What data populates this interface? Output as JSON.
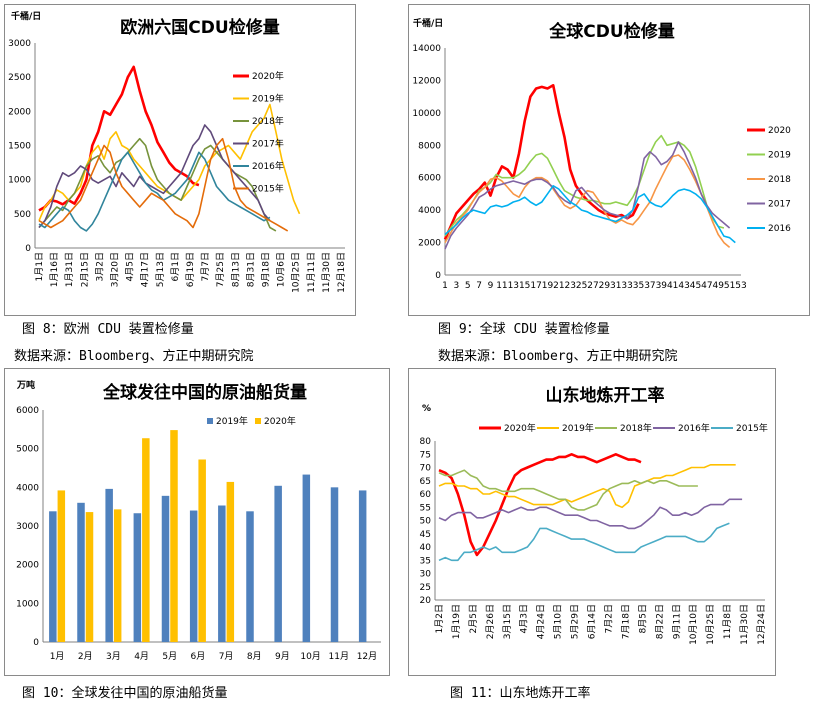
{
  "captions": {
    "fig8": "图 8：欧洲 CDU 装置检修量",
    "fig9": "图 9：全球 CDU 装置检修量",
    "source_left": "数据来源：Bloomberg、方正中期研究院",
    "source_right": "数据来源：Bloomberg、方正中期研究院",
    "fig10": "图 10：全球发往中国的原油船货量",
    "fig11": "图 11：山东地炼开工率"
  },
  "chart_data": [
    {
      "id": "europe_cdu",
      "type": "line",
      "title": "欧洲六国CDU检修量",
      "unit": "千桶/日",
      "ylim": [
        0,
        3000
      ],
      "yticks": [
        "0",
        "500",
        "1000",
        "1500",
        "2000",
        "2500",
        "3000"
      ],
      "xticks": [
        "1月1日",
        "1月16日",
        "1月31日",
        "2月15日",
        "3月2日",
        "3月20日",
        "4月5日",
        "4月17日",
        "5月13日",
        "6月1日",
        "6月19日",
        "7月7日",
        "7月25日",
        "8月13日",
        "8月31日",
        "9月18日",
        "10月6日",
        "10月25日",
        "11月11日",
        "11月30日",
        "12月18日"
      ],
      "colors": {
        "2020年": "#ff0000",
        "2019年": "#ffc000",
        "2018年": "#77933c",
        "2017年": "#604a7b",
        "2016年": "#31859c",
        "2015年": "#e46c0a"
      },
      "series": [
        {
          "name": "2020年",
          "values": [
            550,
            600,
            700,
            680,
            640,
            700,
            650,
            800,
            1000,
            1500,
            1700,
            2000,
            1950,
            2100,
            2250,
            2500,
            2650,
            2300,
            2000,
            1800,
            1550,
            1400,
            1250,
            1150,
            1100,
            1050,
            950,
            920
          ]
        },
        {
          "name": "2019年",
          "values": [
            400,
            600,
            700,
            850,
            800,
            700,
            800,
            900,
            1200,
            1400,
            1500,
            1300,
            1600,
            1700,
            1500,
            1450,
            1300,
            1200,
            1100,
            1000,
            900,
            850,
            800,
            750,
            700,
            800,
            900,
            1000,
            1200,
            1300,
            1400,
            1450,
            1500,
            1400,
            1300,
            1500,
            1700,
            1800,
            1900,
            2100,
            1700,
            1300,
            1000,
            700,
            500
          ]
        },
        {
          "name": "2018年",
          "values": [
            300,
            400,
            500,
            600,
            550,
            700,
            800,
            1000,
            1200,
            1300,
            1350,
            1200,
            1100,
            1250,
            1300,
            1400,
            1500,
            1600,
            1500,
            1200,
            1000,
            900,
            800,
            750,
            700,
            900,
            1100,
            1300,
            1450,
            1500,
            1400,
            1300,
            1200,
            1100,
            1050,
            1000,
            900,
            700,
            500,
            300,
            250
          ]
        },
        {
          "name": "2017年",
          "values": [
            300,
            400,
            600,
            900,
            1100,
            1050,
            1100,
            1200,
            1150,
            1000,
            950,
            1000,
            1050,
            900,
            1100,
            1000,
            900,
            1050,
            950,
            900,
            850,
            800,
            900,
            1000,
            1100,
            1300,
            1500,
            1600,
            1800,
            1700,
            1500,
            1300,
            1200,
            1100,
            1000,
            900,
            800,
            700,
            500,
            400
          ]
        },
        {
          "name": "2016年",
          "values": [
            350,
            300,
            400,
            500,
            600,
            550,
            400,
            300,
            250,
            350,
            500,
            700,
            900,
            1100,
            1300,
            1400,
            1250,
            1100,
            950,
            850,
            800,
            700,
            750,
            800,
            900,
            1000,
            1200,
            1400,
            1300,
            1100,
            900,
            800,
            700,
            650,
            600,
            550,
            500,
            450,
            400,
            450
          ]
        },
        {
          "name": "2015年",
          "values": [
            400,
            350,
            300,
            350,
            400,
            500,
            600,
            700,
            900,
            1100,
            1300,
            1500,
            1400,
            1100,
            900,
            800,
            700,
            600,
            700,
            800,
            750,
            700,
            600,
            500,
            450,
            400,
            300,
            500,
            900,
            1300,
            1500,
            1600,
            1300,
            900,
            700,
            600,
            550,
            500,
            450,
            400,
            350,
            300,
            250
          ]
        }
      ]
    },
    {
      "id": "global_cdu",
      "type": "line",
      "title": "全球CDU检修量",
      "unit": "千桶/日",
      "ylim": [
        0,
        14000
      ],
      "yticks": [
        "0",
        "2000",
        "4000",
        "6000",
        "8000",
        "10000",
        "12000",
        "14000"
      ],
      "xticks": [
        "1",
        "3",
        "5",
        "7",
        "9",
        "11",
        "13",
        "15",
        "17",
        "19",
        "21",
        "23",
        "25",
        "27",
        "29",
        "31",
        "33",
        "35",
        "37",
        "39",
        "41",
        "43",
        "45",
        "47",
        "49",
        "51",
        "53"
      ],
      "colors": {
        "2020": "#ff0000",
        "2019": "#92d050",
        "2018": "#f79646",
        "2017": "#8064a2",
        "2016": "#00b0f0"
      },
      "series": [
        {
          "name": "2020",
          "values": [
            2200,
            3000,
            3800,
            4200,
            4600,
            5000,
            5300,
            5700,
            4900,
            6000,
            6700,
            6500,
            6000,
            7500,
            9500,
            11000,
            11500,
            11600,
            11500,
            11700,
            10000,
            8500,
            6500,
            5500,
            5000,
            4600,
            4300,
            4000,
            3800,
            3700,
            3600,
            3700,
            3500,
            3700,
            4400
          ]
        },
        {
          "name": "2019",
          "values": [
            2400,
            2900,
            3400,
            3700,
            4100,
            4600,
            5200,
            5400,
            5700,
            6200,
            6000,
            6000,
            6000,
            6200,
            6500,
            7000,
            7400,
            7500,
            7200,
            6500,
            5800,
            5200,
            5000,
            4800,
            4700,
            4600,
            4600,
            4500,
            4400,
            4400,
            4500,
            4400,
            4300,
            4800,
            5500,
            6500,
            7500,
            8200,
            8600,
            8000,
            8100,
            8200,
            8000,
            7600,
            6700,
            5500,
            4300,
            3500,
            3000,
            2900
          ]
        },
        {
          "name": "2018",
          "values": [
            2000,
            2600,
            3200,
            3600,
            4000,
            4600,
            5100,
            5400,
            5900,
            6000,
            5800,
            5400,
            5000,
            4800,
            5400,
            5800,
            6000,
            6000,
            5800,
            5300,
            4800,
            4300,
            4100,
            4300,
            4800,
            5200,
            5100,
            4600,
            3900,
            3400,
            3200,
            3400,
            3200,
            3100,
            3500,
            4000,
            4500,
            5300,
            6000,
            6700,
            7300,
            7400,
            7100,
            6500,
            5800,
            5000,
            4200,
            3300,
            2500,
            2000,
            1700
          ]
        },
        {
          "name": "2017",
          "values": [
            1600,
            2400,
            2900,
            3300,
            3700,
            4200,
            4800,
            5000,
            5300,
            5500,
            5600,
            5700,
            5800,
            5700,
            5600,
            5800,
            5900,
            5900,
            5700,
            5400,
            4900,
            4600,
            4400,
            5200,
            5400,
            5000,
            4600,
            4300,
            4000,
            3800,
            3700,
            3600,
            3500,
            4000,
            5500,
            7200,
            7600,
            7300,
            6800,
            7000,
            7400,
            8200,
            7600,
            6800,
            6000,
            5000,
            4300,
            3800,
            3500,
            3200,
            2900
          ]
        },
        {
          "name": "2016",
          "values": [
            2500,
            2800,
            3100,
            3500,
            3800,
            4000,
            3900,
            3800,
            4200,
            4300,
            4200,
            4300,
            4500,
            4600,
            4800,
            4500,
            4300,
            4500,
            5000,
            5500,
            5300,
            4900,
            4500,
            4300,
            4000,
            3900,
            3700,
            3600,
            3500,
            3400,
            3300,
            3500,
            3700,
            4000,
            4800,
            5000,
            4500,
            4300,
            4200,
            4500,
            4900,
            5200,
            5300,
            5200,
            5000,
            4700,
            4200,
            3600,
            3000,
            2400,
            2300,
            2000
          ]
        }
      ]
    },
    {
      "id": "crude_shipments",
      "type": "bar",
      "title": "全球发往中国的原油船货量",
      "unit": "万吨",
      "ylim": [
        0,
        6000
      ],
      "yticks": [
        "0",
        "1000",
        "2000",
        "3000",
        "4000",
        "5000",
        "6000"
      ],
      "categories": [
        "1月",
        "2月",
        "3月",
        "4月",
        "5月",
        "6月",
        "7月",
        "8月",
        "9月",
        "10月",
        "11月",
        "12月"
      ],
      "colors": {
        "2019年": "#4f81bd",
        "2020年": "#ffc000"
      },
      "series": [
        {
          "name": "2019年",
          "values": [
            3380,
            3600,
            3960,
            3330,
            3780,
            3400,
            3530,
            3380,
            4040,
            4330,
            4000,
            3920
          ]
        },
        {
          "name": "2020年",
          "values": [
            3920,
            3360,
            3430,
            5270,
            5480,
            4720,
            4140,
            null,
            null,
            null,
            null,
            null
          ]
        }
      ]
    },
    {
      "id": "shandong_refinery",
      "type": "line",
      "title": "山东地炼开工率",
      "unit": "%",
      "ylim": [
        20,
        80
      ],
      "yticks": [
        "20",
        "25",
        "30",
        "35",
        "40",
        "45",
        "50",
        "55",
        "60",
        "65",
        "70",
        "75",
        "80"
      ],
      "xticks": [
        "1月2日",
        "1月19日",
        "2月5日",
        "2月26日",
        "3月15日",
        "4月3日",
        "4月24日",
        "5月10日",
        "5月29日",
        "6月14日",
        "7月2日",
        "7月18日",
        "8月5日",
        "8月22日",
        "9月11日",
        "10月10日",
        "10月25日",
        "11月8日",
        "11月30日",
        "12月24日"
      ],
      "colors": {
        "2020年": "#ff0000",
        "2019年": "#ffc000",
        "2018年": "#9bbb59",
        "2016年": "#8064a2",
        "2015年": "#4bacc6"
      },
      "series": [
        {
          "name": "2020年",
          "values": [
            69,
            68,
            66,
            60,
            52,
            42,
            37,
            40,
            45,
            50,
            56,
            62,
            67,
            69,
            70,
            71,
            72,
            73,
            73,
            74,
            74,
            75,
            74,
            74,
            73,
            72,
            73,
            74,
            75,
            74,
            73,
            73,
            72
          ]
        },
        {
          "name": "2019年",
          "values": [
            63,
            64,
            64,
            63,
            63,
            62,
            62,
            60,
            60,
            61,
            60,
            59,
            59,
            58,
            57,
            56,
            56,
            56,
            56,
            57,
            58,
            57,
            58,
            59,
            60,
            61,
            62,
            61,
            56,
            55,
            57,
            63,
            64,
            65,
            66,
            66,
            67,
            67,
            68,
            69,
            70,
            70,
            70,
            71,
            71,
            71,
            71,
            71
          ]
        },
        {
          "name": "2018年",
          "values": [
            68,
            67,
            67,
            68,
            69,
            67,
            66,
            63,
            62,
            62,
            61,
            61,
            61,
            62,
            62,
            62,
            61,
            60,
            59,
            58,
            58,
            55,
            54,
            54,
            55,
            56,
            60,
            62,
            63,
            64,
            64,
            65,
            64,
            65,
            64,
            65,
            65,
            64,
            63,
            63,
            63,
            63
          ]
        },
        {
          "name": "2016年",
          "values": [
            51,
            50,
            52,
            53,
            53,
            53,
            51,
            51,
            52,
            53,
            54,
            53,
            54,
            55,
            54,
            54,
            55,
            55,
            54,
            53,
            52,
            52,
            52,
            51,
            50,
            50,
            49,
            48,
            48,
            48,
            47,
            47,
            48,
            50,
            52,
            55,
            54,
            52,
            52,
            53,
            52,
            53,
            55,
            56,
            56,
            56,
            58,
            58,
            58
          ]
        },
        {
          "name": "2015年",
          "values": [
            35,
            36,
            35,
            35,
            38,
            38,
            39,
            40,
            39,
            40,
            38,
            38,
            38,
            39,
            40,
            43,
            47,
            47,
            46,
            45,
            44,
            43,
            43,
            43,
            42,
            41,
            40,
            39,
            38,
            38,
            38,
            38,
            40,
            41,
            42,
            43,
            44,
            44,
            44,
            44,
            43,
            42,
            42,
            44,
            47,
            48,
            49
          ]
        }
      ]
    }
  ]
}
